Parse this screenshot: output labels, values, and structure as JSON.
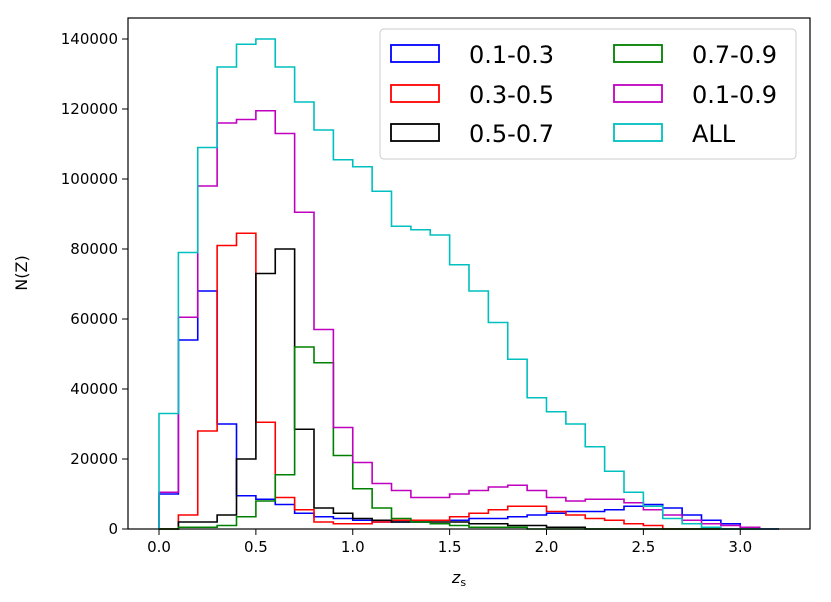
{
  "chart_data": {
    "type": "histogram-step",
    "title": "",
    "xlabel": "z_s",
    "ylabel": "N(Z)",
    "xlim": [
      -0.16,
      3.36
    ],
    "ylim": [
      0,
      146000
    ],
    "grid": false,
    "legend_location": "top-right",
    "bin_edges": [
      0.0,
      0.1,
      0.2,
      0.3,
      0.4,
      0.5,
      0.6,
      0.7,
      0.8,
      0.9,
      1.0,
      1.1,
      1.2,
      1.3,
      1.4,
      1.5,
      1.6,
      1.7,
      1.8,
      1.9,
      2.0,
      2.1,
      2.2,
      2.3,
      2.4,
      2.5,
      2.6,
      2.7,
      2.8,
      2.9,
      3.0,
      3.1,
      3.2
    ],
    "xticks": [
      0.0,
      0.5,
      1.0,
      1.5,
      2.0,
      2.5,
      3.0
    ],
    "xtick_labels": [
      "0.0",
      "0.5",
      "1.0",
      "1.5",
      "2.0",
      "2.5",
      "3.0"
    ],
    "yticks": [
      0,
      20000,
      40000,
      60000,
      80000,
      100000,
      120000,
      140000
    ],
    "ytick_labels": [
      "0",
      "20000",
      "40000",
      "60000",
      "80000",
      "100000",
      "120000",
      "140000"
    ],
    "series": [
      {
        "name": "0.1-0.3",
        "color": "#0000ff",
        "values": [
          10000,
          54000,
          68000,
          30000,
          9500,
          8500,
          7000,
          4500,
          3500,
          3000,
          2500,
          2000,
          2000,
          2000,
          2500,
          2500,
          3000,
          3000,
          3500,
          4000,
          4500,
          5000,
          5000,
          5500,
          6500,
          7000,
          6000,
          4000,
          2500,
          1500,
          500,
          0
        ]
      },
      {
        "name": "0.3-0.5",
        "color": "#ff0000",
        "values": [
          0,
          4000,
          28000,
          81000,
          84500,
          30500,
          9000,
          5500,
          2000,
          1500,
          1500,
          2000,
          2500,
          2500,
          2500,
          3500,
          4500,
          5500,
          6500,
          6500,
          5000,
          4000,
          3000,
          2500,
          1500,
          1000,
          0,
          0,
          0,
          0,
          0,
          0
        ]
      },
      {
        "name": "0.5-0.7",
        "color": "#000000",
        "values": [
          0,
          2000,
          2000,
          4000,
          20000,
          73000,
          80000,
          28500,
          6000,
          4500,
          3000,
          2500,
          2000,
          2000,
          2000,
          2000,
          1500,
          1500,
          1000,
          1000,
          500,
          500,
          0,
          0,
          0,
          0,
          0,
          0,
          0,
          0,
          0,
          0
        ]
      },
      {
        "name": "0.7-0.9",
        "color": "#008000",
        "values": [
          0,
          500,
          500,
          1000,
          3500,
          8000,
          15500,
          52000,
          47500,
          21000,
          11500,
          6000,
          3000,
          2000,
          1500,
          1000,
          500,
          500,
          500,
          0,
          0,
          0,
          0,
          0,
          0,
          0,
          0,
          0,
          0,
          0,
          0,
          0
        ]
      },
      {
        "name": "0.1-0.9",
        "color": "#bf00bf",
        "values": [
          10500,
          60500,
          98000,
          116000,
          117000,
          119500,
          113000,
          90500,
          57000,
          29000,
          19000,
          13000,
          11000,
          9000,
          9000,
          10000,
          11000,
          12000,
          12500,
          11000,
          9000,
          8000,
          8500,
          8500,
          7500,
          5500,
          4000,
          2500,
          1500,
          1000,
          500,
          0
        ]
      },
      {
        "name": "ALL",
        "color": "#00bfbf",
        "values": [
          33000,
          79000,
          109000,
          132000,
          138500,
          140000,
          132000,
          122000,
          114000,
          105500,
          103500,
          96500,
          86500,
          85500,
          84000,
          75500,
          68000,
          59000,
          48500,
          37500,
          33500,
          30000,
          23500,
          16500,
          10500,
          6500,
          3000,
          1500,
          500,
          0,
          0,
          0
        ]
      }
    ]
  },
  "legend": {
    "items": [
      "0.1-0.3",
      "0.3-0.5",
      "0.5-0.7",
      "0.7-0.9",
      "0.1-0.9",
      "ALL"
    ]
  },
  "axes": {
    "ylabel_text": "N(Z)",
    "xlabel_main": "z",
    "xlabel_sub": "s"
  }
}
